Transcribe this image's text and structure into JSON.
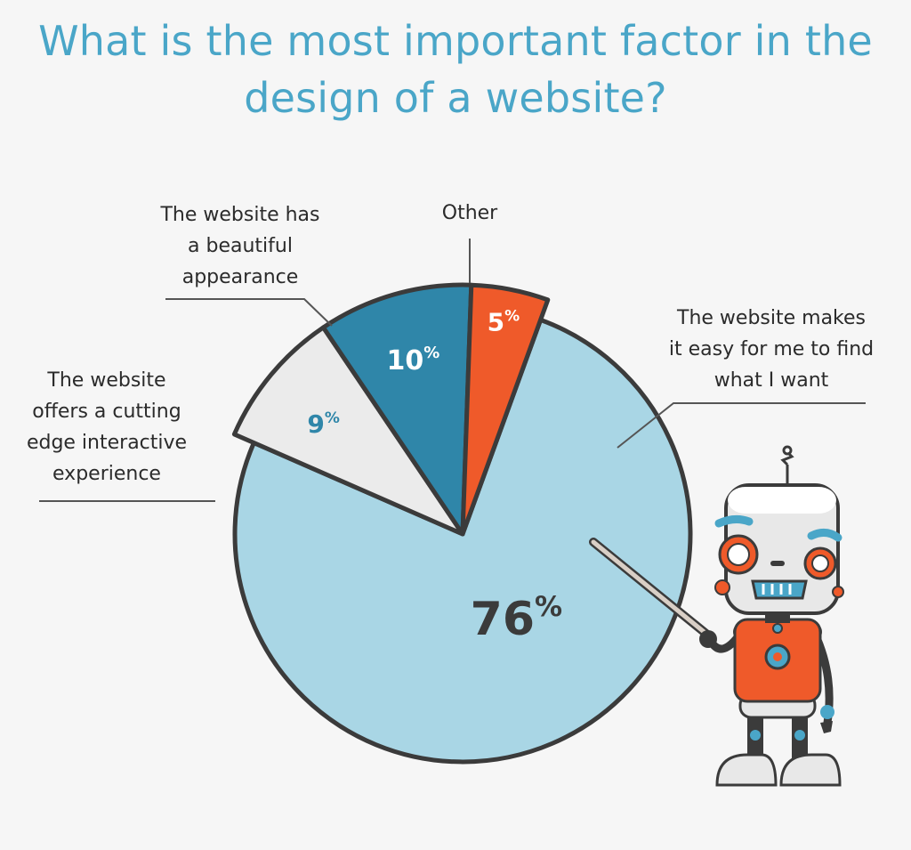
{
  "title": {
    "line1": "What is the most important factor in the",
    "line2": "design of a website?"
  },
  "labels": {
    "find": [
      "The website makes",
      "it easy for me to find",
      "what I want"
    ],
    "beautiful": [
      "The website has",
      "a beautiful",
      "appearance"
    ],
    "interactive": [
      "The website",
      "offers a cutting",
      "edge interactive",
      "experience"
    ],
    "other": [
      "Other"
    ]
  },
  "chart_data": {
    "type": "pie",
    "title": "What is the most important factor in the design of a website?",
    "unit": "%",
    "slices": [
      {
        "label": "The website makes it easy for me to find what I want",
        "value": 76,
        "color": "#a9d6e5"
      },
      {
        "label": "The website offers a cutting edge interactive experience",
        "value": 9,
        "color": "#ebebeb",
        "exploded": true
      },
      {
        "label": "The website has a beautiful appearance",
        "value": 10,
        "color": "#2f86a9",
        "exploded": true
      },
      {
        "label": "Other",
        "value": 5,
        "color": "#ef5a2a",
        "exploded": true
      }
    ],
    "outline_color": "#3b3b3b"
  },
  "colors": {
    "title": "#4aa6c8",
    "robot_red": "#ef5a2a",
    "robot_blue": "#4aa6c8"
  },
  "illustration": {
    "icon": "robot-pointer-icon"
  }
}
